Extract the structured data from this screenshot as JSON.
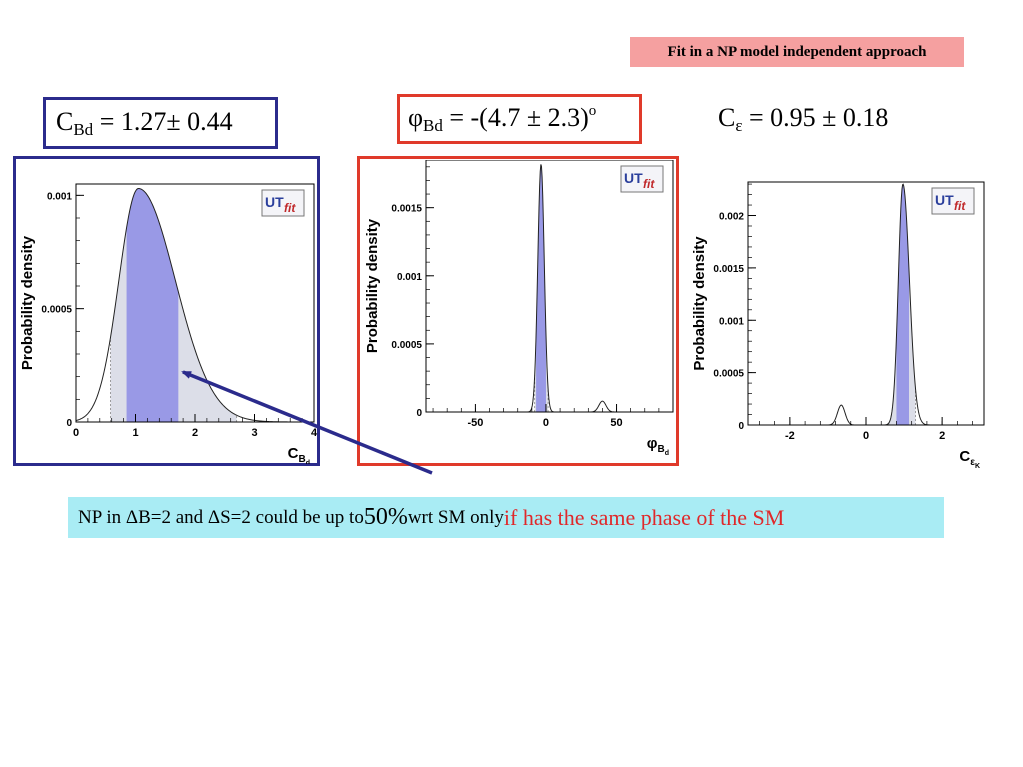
{
  "header": {
    "tag": "Fit in a NP model independent approach"
  },
  "results": [
    {
      "sym": "C",
      "sub": "Bd",
      "text": " = 1.27± 0.44",
      "sup": ""
    },
    {
      "sym": "φ",
      "sub": "Bd",
      "text": " = -(4.7 ± 2.3)",
      "sup": "o"
    },
    {
      "sym": "C",
      "sub": "ε",
      "text": " = 0.95 ± 0.18",
      "sup": ""
    }
  ],
  "note": {
    "part1": "NP in ΔB=2 and ΔS=2 could be up to ",
    "part2": "50%",
    "part3": " wrt SM only ",
    "part4": "if has the same phase of the SM"
  },
  "colors": {
    "fill_core": "#9999e6",
    "fill_band": "#dcdee8",
    "frame_blue": "#2b2b8c",
    "frame_red": "#e03a2a",
    "arrow": "#2b2b8c"
  },
  "chart_data": [
    {
      "type": "area",
      "logo": [
        "UT",
        "fit"
      ],
      "ylabel": "Probability density",
      "xlabel": {
        "base": "C",
        "sub": "B",
        "subsub": "d"
      },
      "xlim": [
        0,
        4
      ],
      "ylim": [
        0,
        0.00105
      ],
      "xticks": [
        0,
        1,
        2,
        3,
        4
      ],
      "xtick_labels": [
        "0",
        "1",
        "2",
        "3",
        "4"
      ],
      "yticks": [
        0,
        0.0005,
        0.001
      ],
      "ytick_labels": [
        "0",
        "0.0005",
        "0.001"
      ],
      "bands": {
        "outer": [
          0.58,
          2.7
        ],
        "core": [
          0.85,
          1.72
        ]
      },
      "peaks": [
        {
          "x": 1.05,
          "h": 0.00103,
          "sl": 0.33,
          "sr": 0.62
        }
      ]
    },
    {
      "type": "area",
      "logo": [
        "UT",
        "fit"
      ],
      "ylabel": "Probability density",
      "xlabel": {
        "base": "φ",
        "sub": "B",
        "subsub": "d"
      },
      "xlim": [
        -85,
        90
      ],
      "ylim": [
        0,
        0.00185
      ],
      "xticks": [
        -50,
        0,
        50
      ],
      "xtick_labels": [
        "-50",
        "0",
        "50"
      ],
      "yticks": [
        0,
        0.0005,
        0.001,
        0.0015
      ],
      "ytick_labels": [
        "0",
        "0.0005",
        "0.001",
        "0.0015"
      ],
      "bands": {
        "outer": [
          -8,
          1.5
        ],
        "core": [
          -7,
          0
        ]
      },
      "peaks": [
        {
          "x": -3.5,
          "h": 0.00182,
          "sl": 2.3,
          "sr": 2.3
        },
        {
          "x": 40,
          "h": 8e-05,
          "sl": 2.5,
          "sr": 2.5
        }
      ]
    },
    {
      "type": "area",
      "logo": [
        "UT",
        "fit"
      ],
      "ylabel": "Probability density",
      "xlabel": {
        "base": "C",
        "sub": "ε",
        "subsub": "K"
      },
      "xlim": [
        -3.1,
        3.1
      ],
      "ylim": [
        0,
        0.00232
      ],
      "xticks": [
        -2,
        0,
        2
      ],
      "xtick_labels": [
        "-2",
        "0",
        "2"
      ],
      "yticks": [
        0,
        0.0005,
        0.001,
        0.0015,
        0.002
      ],
      "ytick_labels": [
        "0",
        "0.0005",
        "0.001",
        "0.0015",
        "0.002"
      ],
      "bands": {
        "outer": [
          0.6,
          1.3
        ],
        "core": [
          0.8,
          1.13
        ]
      },
      "peaks": [
        {
          "x": 0.97,
          "h": 0.0023,
          "sl": 0.12,
          "sr": 0.17
        },
        {
          "x": -0.65,
          "h": 0.00019,
          "sl": 0.1,
          "sr": 0.1
        }
      ]
    }
  ]
}
